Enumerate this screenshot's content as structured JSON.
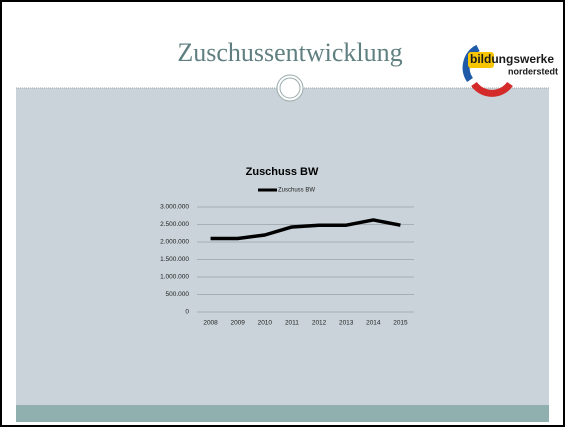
{
  "slide": {
    "title": "Zuschussentwicklung",
    "logo": {
      "name": "bildungswerke",
      "place": "norderstedt"
    }
  },
  "chart_data": {
    "type": "line",
    "title": "Zuschuss BW",
    "categories": [
      "2008",
      "2009",
      "2010",
      "2011",
      "2012",
      "2013",
      "2014",
      "2015"
    ],
    "series": [
      {
        "name": "Zuschuss BW",
        "color": "#000000",
        "values": [
          2100000,
          2100000,
          2200000,
          2430000,
          2480000,
          2480000,
          2630000,
          2480000
        ]
      }
    ],
    "ylim": [
      0,
      3000000
    ],
    "yticks": [
      0,
      {
        "value": 500000,
        "label": "500.000"
      },
      {
        "value": 1000000,
        "label": "1.000.000"
      },
      {
        "value": 1500000,
        "label": "1.500.000"
      },
      {
        "value": 2000000,
        "label": "2.000.000"
      },
      {
        "value": 2500000,
        "label": "2.500.000"
      },
      {
        "value": 3000000,
        "label": "3.000.000"
      }
    ],
    "grid": true,
    "legend": "top"
  }
}
